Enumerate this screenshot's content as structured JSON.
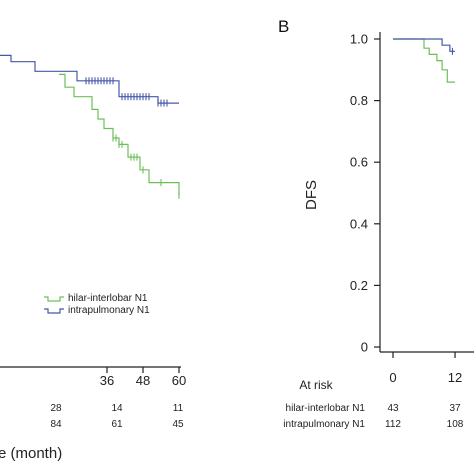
{
  "colors": {
    "hilar": "#6dbf5a",
    "intrapulmonary": "#4659a8",
    "axis": "#222222"
  },
  "chart_data": [
    {
      "type": "line",
      "panel": "",
      "xlabel": "e (month)",
      "ylabel": "",
      "xlim": [
        0,
        60
      ],
      "ylim": [
        0,
        1.0
      ],
      "x_ticks": [
        "36",
        "48",
        "60"
      ],
      "series": [
        {
          "name": "hilar-interlobar N1",
          "color_key": "hilar",
          "points": [
            [
              20,
              0.92
            ],
            [
              22,
              0.92
            ],
            [
              22,
              0.88
            ],
            [
              25,
              0.88
            ],
            [
              25,
              0.85
            ],
            [
              31,
              0.85
            ],
            [
              31,
              0.81
            ],
            [
              33,
              0.81
            ],
            [
              33,
              0.78
            ],
            [
              35,
              0.78
            ],
            [
              35,
              0.75
            ],
            [
              38,
              0.75
            ],
            [
              38,
              0.72
            ],
            [
              40,
              0.72
            ],
            [
              40,
              0.7
            ],
            [
              43,
              0.7
            ],
            [
              43,
              0.66
            ],
            [
              47,
              0.66
            ],
            [
              47,
              0.62
            ],
            [
              50,
              0.62
            ],
            [
              50,
              0.58
            ],
            [
              60,
              0.58
            ],
            [
              60,
              0.54
            ]
          ],
          "censor_x": [
            38,
            39,
            40,
            41,
            44,
            45,
            46,
            48,
            54,
            60
          ]
        },
        {
          "name": "intrapulmonary N1",
          "color_key": "intrapulmonary",
          "points": [
            [
              0,
              0.98
            ],
            [
              4,
              0.98
            ],
            [
              4,
              0.96
            ],
            [
              12,
              0.96
            ],
            [
              12,
              0.93
            ],
            [
              26,
              0.93
            ],
            [
              26,
              0.9
            ],
            [
              40,
              0.9
            ],
            [
              40,
              0.85
            ],
            [
              53,
              0.85
            ],
            [
              53,
              0.83
            ],
            [
              60,
              0.83
            ]
          ],
          "censor_x": [
            29,
            30,
            31,
            32,
            33,
            34,
            35,
            36,
            37,
            38,
            41,
            42,
            43,
            44,
            45,
            46,
            47,
            48,
            49,
            50,
            53,
            54,
            55,
            56
          ]
        }
      ],
      "at_risk": {
        "header": "",
        "rows": [
          {
            "label": "",
            "values": [
              "28",
              "14",
              "11"
            ]
          },
          {
            "label": "",
            "values": [
              "84",
              "61",
              "45"
            ]
          }
        ]
      },
      "legend": {
        "position": "bottom-right",
        "entries": [
          "hilar-interlobar N1",
          "intrapulmonary N1"
        ]
      }
    },
    {
      "type": "line",
      "panel": "B",
      "ylabel": "DFS",
      "xlim": [
        0,
        12
      ],
      "ylim": [
        0,
        1.0
      ],
      "y_ticks": [
        "1.0",
        "0.8",
        "0.6",
        "0.4",
        "0.2",
        "0"
      ],
      "x_ticks": [
        "0",
        "12"
      ],
      "series": [
        {
          "name": "hilar-interlobar N1",
          "color_key": "hilar",
          "points": [
            [
              0,
              1.0
            ],
            [
              6,
              1.0
            ],
            [
              6,
              0.97
            ],
            [
              7,
              0.97
            ],
            [
              7,
              0.95
            ],
            [
              8.5,
              0.95
            ],
            [
              8.5,
              0.93
            ],
            [
              9.5,
              0.93
            ],
            [
              9.5,
              0.9
            ],
            [
              10.5,
              0.9
            ],
            [
              10.5,
              0.86
            ],
            [
              12,
              0.86
            ]
          ],
          "censor_x": []
        },
        {
          "name": "intrapulmonary N1",
          "color_key": "intrapulmonary",
          "points": [
            [
              0,
              1.0
            ],
            [
              9.5,
              1.0
            ],
            [
              9.5,
              0.98
            ],
            [
              11,
              0.98
            ],
            [
              11,
              0.96
            ],
            [
              12,
              0.96
            ]
          ],
          "censor_x": [
            11.5
          ]
        }
      ],
      "at_risk": {
        "header": "At risk",
        "rows": [
          {
            "label": "hilar-interlobar N1",
            "values": [
              "43",
              "37"
            ]
          },
          {
            "label": "intrapulmonary N1",
            "values": [
              "112",
              "108"
            ]
          }
        ]
      }
    }
  ]
}
